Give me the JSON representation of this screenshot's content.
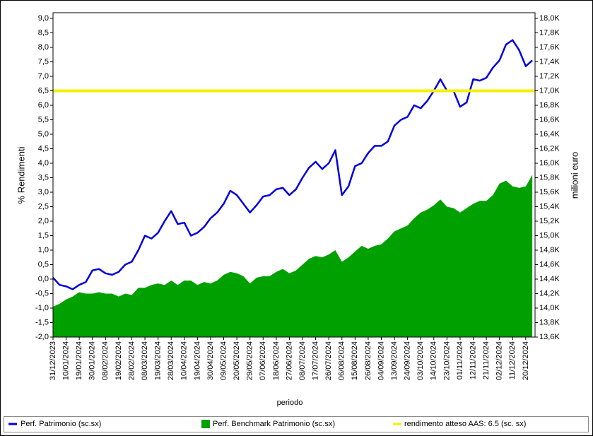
{
  "chart_data": {
    "type": "line",
    "x_label": "periodo",
    "y_label": "% Rendimenti",
    "y2_label": "milioni euro",
    "categories": [
      "31/12/2023",
      null,
      "10/01/2024",
      null,
      "19/01/2024",
      null,
      "30/01/2024",
      null,
      "08/02/2024",
      null,
      "19/02/2024",
      null,
      "28/02/2024",
      null,
      "08/03/2024",
      null,
      "19/03/2024",
      null,
      "28/03/2024",
      null,
      "10/04/2024",
      null,
      "19/04/2024",
      null,
      "30/04/2024",
      null,
      "09/05/2024",
      null,
      "20/05/2024",
      null,
      "29/05/2024",
      null,
      "07/06/2024",
      null,
      "18/06/2024",
      null,
      "27/06/2024",
      null,
      "08/07/2024",
      null,
      "17/07/2024",
      null,
      "26/07/2024",
      null,
      "06/08/2024",
      null,
      "15/08/2024",
      null,
      "26/08/2024",
      null,
      "04/09/2024",
      null,
      "13/09/2024",
      null,
      "24/09/2024",
      null,
      "03/10/2024",
      null,
      "14/10/2024",
      null,
      "23/10/2024",
      null,
      "01/11/2024",
      null,
      "12/11/2024",
      null,
      "21/11/2024",
      null,
      "02/12/2024",
      null,
      "11/12/2024",
      null,
      "20/12/2024",
      null
    ],
    "series": [
      {
        "name": "Perf. Benchmark Patrimonio (sc.sx)",
        "type": "area",
        "color": "#00a000",
        "values": [
          -0.95,
          -0.85,
          -0.7,
          -0.6,
          -0.45,
          -0.5,
          -0.5,
          -0.45,
          -0.5,
          -0.5,
          -0.6,
          -0.5,
          -0.55,
          -0.3,
          -0.3,
          -0.2,
          -0.15,
          -0.2,
          -0.05,
          -0.2,
          -0.05,
          -0.05,
          -0.2,
          -0.1,
          -0.15,
          -0.05,
          0.15,
          0.25,
          0.2,
          0.1,
          -0.15,
          0.05,
          0.1,
          0.1,
          0.25,
          0.35,
          0.2,
          0.3,
          0.5,
          0.7,
          0.8,
          0.75,
          0.85,
          1.0,
          0.6,
          0.75,
          0.95,
          1.15,
          1.05,
          1.15,
          1.2,
          1.4,
          1.65,
          1.75,
          1.85,
          2.1,
          2.3,
          2.4,
          2.55,
          2.75,
          2.5,
          2.45,
          2.3,
          2.45,
          2.6,
          2.7,
          2.7,
          2.9,
          3.3,
          3.4,
          3.2,
          3.15,
          3.2,
          3.6
        ]
      },
      {
        "name": "Perf. Patrimonio (sc.sx)",
        "type": "line",
        "color": "#0000dd",
        "values": [
          0.05,
          -0.2,
          -0.25,
          -0.35,
          -0.2,
          -0.1,
          0.3,
          0.35,
          0.2,
          0.15,
          0.25,
          0.5,
          0.6,
          1.0,
          1.5,
          1.4,
          1.6,
          2.0,
          2.35,
          1.9,
          1.95,
          1.5,
          1.6,
          1.8,
          2.1,
          2.3,
          2.6,
          3.05,
          2.9,
          2.6,
          2.3,
          2.55,
          2.85,
          2.9,
          3.1,
          3.15,
          2.9,
          3.1,
          3.5,
          3.85,
          4.05,
          3.8,
          4.0,
          4.45,
          2.9,
          3.2,
          3.9,
          4.0,
          4.35,
          4.6,
          4.6,
          4.75,
          5.3,
          5.5,
          5.6,
          6.0,
          5.9,
          6.15,
          6.5,
          6.9,
          6.5,
          6.5,
          5.95,
          6.1,
          6.9,
          6.85,
          6.95,
          7.3,
          7.55,
          8.1,
          8.25,
          7.9,
          7.35,
          7.55
        ]
      }
    ],
    "reference_line": {
      "name": "rendimento atteso AAS: 6.5 (sc. sx)",
      "value": 6.5,
      "color": "#f2f200"
    },
    "legend_order": [
      1,
      0
    ],
    "ylim": [
      -2.0,
      9.0
    ],
    "yticks": [
      {
        "value": -2.0,
        "label": "-2,0"
      },
      {
        "value": -1.5,
        "label": "-1,5"
      },
      {
        "value": -1.0,
        "label": "-1,0"
      },
      {
        "value": -0.5,
        "label": "-0,5"
      },
      {
        "value": 0.0,
        "label": "0,0"
      },
      {
        "value": 0.5,
        "label": "0,5"
      },
      {
        "value": 1.0,
        "label": "1,0"
      },
      {
        "value": 1.5,
        "label": "1,5"
      },
      {
        "value": 2.0,
        "label": "2,0"
      },
      {
        "value": 2.5,
        "label": "2,5"
      },
      {
        "value": 3.0,
        "label": "3,0"
      },
      {
        "value": 3.5,
        "label": "3,5"
      },
      {
        "value": 4.0,
        "label": "4,0"
      },
      {
        "value": 4.5,
        "label": "4,5"
      },
      {
        "value": 5.0,
        "label": "5,0"
      },
      {
        "value": 5.5,
        "label": "5,5"
      },
      {
        "value": 6.0,
        "label": "6,0"
      },
      {
        "value": 6.5,
        "label": "6,5"
      },
      {
        "value": 7.0,
        "label": "7,0"
      },
      {
        "value": 7.5,
        "label": "7,5"
      },
      {
        "value": 8.0,
        "label": "8,0"
      },
      {
        "value": 8.5,
        "label": "8,5"
      },
      {
        "value": 9.0,
        "label": "9,0"
      }
    ],
    "y2lim": [
      13600,
      18000
    ],
    "y2ticks": [
      {
        "value": 13600,
        "label": "13,6K"
      },
      {
        "value": 13800,
        "label": "13,8K"
      },
      {
        "value": 14000,
        "label": "14,0K"
      },
      {
        "value": 14200,
        "label": "14,2K"
      },
      {
        "value": 14400,
        "label": "14,4K"
      },
      {
        "value": 14600,
        "label": "14,6K"
      },
      {
        "value": 14800,
        "label": "14,8K"
      },
      {
        "value": 15000,
        "label": "15,0K"
      },
      {
        "value": 15200,
        "label": "15,2K"
      },
      {
        "value": 15400,
        "label": "15,4K"
      },
      {
        "value": 15600,
        "label": "15,6K"
      },
      {
        "value": 15800,
        "label": "15,8K"
      },
      {
        "value": 16000,
        "label": "16,0K"
      },
      {
        "value": 16200,
        "label": "16,2K"
      },
      {
        "value": 16400,
        "label": "16,4K"
      },
      {
        "value": 16600,
        "label": "16,6K"
      },
      {
        "value": 16800,
        "label": "16,8K"
      },
      {
        "value": 17000,
        "label": "17,0K"
      },
      {
        "value": 17200,
        "label": "17,2K"
      },
      {
        "value": 17400,
        "label": "17,4K"
      },
      {
        "value": 17600,
        "label": "17,6K"
      },
      {
        "value": 17800,
        "label": "17,8K"
      },
      {
        "value": 18000,
        "label": "18,0K"
      }
    ]
  }
}
